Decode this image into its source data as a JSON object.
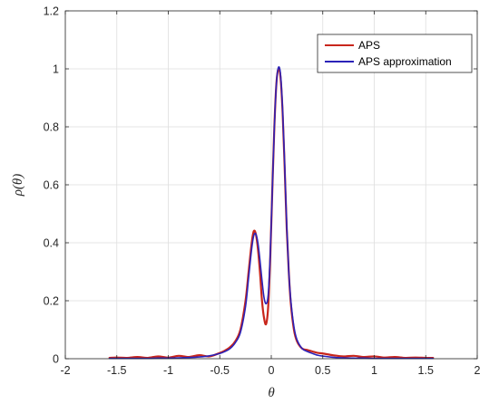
{
  "chart_data": {
    "type": "line",
    "title": "",
    "xlabel": "θ",
    "ylabel": "ρ(θ)",
    "xlim": [
      -2,
      2
    ],
    "ylim": [
      0,
      1.2
    ],
    "xticks": [
      -2,
      -1.5,
      -1,
      -0.5,
      0,
      0.5,
      1,
      1.5,
      2
    ],
    "xtick_labels": [
      "-2",
      "-1.5",
      "-1",
      "-0.5",
      "0",
      "0.5",
      "1",
      "1.5",
      "2"
    ],
    "yticks": [
      0,
      0.2,
      0.4,
      0.6,
      0.8,
      1,
      1.2
    ],
    "ytick_labels": [
      "0",
      "0.2",
      "0.4",
      "0.6",
      "0.8",
      "1",
      "1.2"
    ],
    "grid": true,
    "legend_position": "top-right",
    "series": [
      {
        "name": "APS",
        "color": "#c8261c",
        "x": [
          -1.571,
          -1.5,
          -1.4,
          -1.3,
          -1.2,
          -1.1,
          -1.0,
          -0.9,
          -0.8,
          -0.7,
          -0.6,
          -0.5,
          -0.45,
          -0.4,
          -0.35,
          -0.3,
          -0.25,
          -0.22,
          -0.19,
          -0.17,
          -0.15,
          -0.13,
          -0.11,
          -0.09,
          -0.07,
          -0.05,
          -0.03,
          -0.01,
          0.01,
          0.03,
          0.05,
          0.07,
          0.09,
          0.11,
          0.13,
          0.15,
          0.17,
          0.19,
          0.22,
          0.25,
          0.3,
          0.35,
          0.4,
          0.45,
          0.5,
          0.6,
          0.7,
          0.8,
          0.9,
          1.0,
          1.1,
          1.2,
          1.3,
          1.4,
          1.5,
          1.571
        ],
        "y": [
          0.003,
          0.004,
          0.003,
          0.006,
          0.003,
          0.008,
          0.004,
          0.01,
          0.006,
          0.012,
          0.008,
          0.02,
          0.028,
          0.04,
          0.06,
          0.1,
          0.2,
          0.3,
          0.4,
          0.44,
          0.43,
          0.38,
          0.3,
          0.2,
          0.14,
          0.12,
          0.18,
          0.35,
          0.58,
          0.8,
          0.95,
          1.0,
          0.97,
          0.85,
          0.66,
          0.45,
          0.3,
          0.19,
          0.1,
          0.06,
          0.035,
          0.03,
          0.025,
          0.02,
          0.018,
          0.012,
          0.008,
          0.01,
          0.006,
          0.008,
          0.004,
          0.006,
          0.003,
          0.004,
          0.003,
          0.003
        ]
      },
      {
        "name": "APS approximation",
        "color": "#2b22b8",
        "x": [
          -1.571,
          -1.5,
          -1.4,
          -1.3,
          -1.2,
          -1.1,
          -1.0,
          -0.9,
          -0.8,
          -0.7,
          -0.6,
          -0.5,
          -0.45,
          -0.4,
          -0.35,
          -0.3,
          -0.25,
          -0.22,
          -0.19,
          -0.17,
          -0.15,
          -0.13,
          -0.11,
          -0.09,
          -0.07,
          -0.05,
          -0.03,
          -0.01,
          0.01,
          0.03,
          0.05,
          0.07,
          0.09,
          0.11,
          0.13,
          0.15,
          0.17,
          0.19,
          0.22,
          0.25,
          0.3,
          0.35,
          0.4,
          0.45,
          0.5,
          0.6,
          0.7,
          0.8,
          0.9,
          1.0,
          1.1,
          1.2,
          1.3,
          1.4,
          1.5,
          1.571
        ],
        "y": [
          0.001,
          0.001,
          0.001,
          0.001,
          0.001,
          0.002,
          0.002,
          0.003,
          0.004,
          0.006,
          0.01,
          0.018,
          0.025,
          0.035,
          0.055,
          0.09,
          0.18,
          0.28,
          0.38,
          0.425,
          0.43,
          0.4,
          0.34,
          0.27,
          0.21,
          0.19,
          0.22,
          0.36,
          0.58,
          0.8,
          0.95,
          1.005,
          0.98,
          0.86,
          0.67,
          0.46,
          0.3,
          0.2,
          0.11,
          0.065,
          0.035,
          0.025,
          0.018,
          0.012,
          0.009,
          0.005,
          0.003,
          0.002,
          0.002,
          0.001,
          0.001,
          0.001,
          0.001,
          0.001,
          0.001,
          0.001
        ]
      }
    ]
  }
}
